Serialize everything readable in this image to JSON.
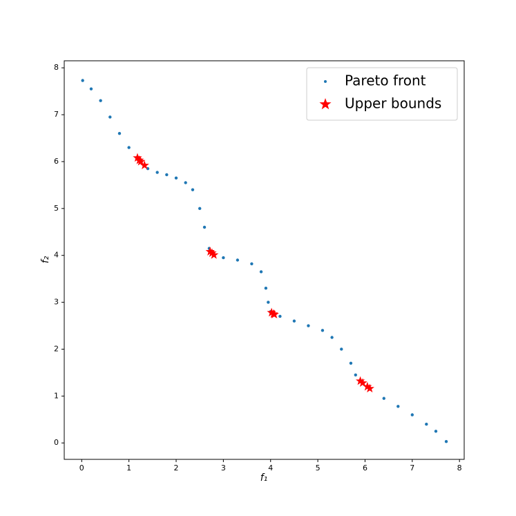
{
  "chart_data": {
    "type": "scatter",
    "xlabel": "f₁",
    "ylabel": "f₂",
    "xlim": [
      -0.37,
      8.1
    ],
    "ylim": [
      -0.35,
      8.15
    ],
    "xticks": [
      0,
      1,
      2,
      3,
      4,
      5,
      6,
      7,
      8
    ],
    "yticks": [
      0,
      1,
      2,
      3,
      4,
      5,
      6,
      7,
      8
    ],
    "legend": "upper right",
    "series": [
      {
        "name": "Pareto front",
        "color": "#1f77b4",
        "marker": "point",
        "x": [
          0.02,
          0.2,
          0.4,
          0.6,
          0.8,
          1.0,
          1.2,
          1.4,
          1.6,
          1.8,
          2.0,
          2.2,
          2.35,
          2.5,
          2.6,
          2.7,
          2.8,
          3.0,
          3.3,
          3.6,
          3.8,
          3.9,
          3.95,
          4.0,
          4.2,
          4.5,
          4.8,
          5.1,
          5.3,
          5.5,
          5.7,
          5.8,
          5.9,
          6.1,
          6.4,
          6.7,
          7.0,
          7.3,
          7.5,
          7.72
        ],
        "values": [
          7.73,
          7.55,
          7.3,
          6.95,
          6.6,
          6.3,
          6.05,
          5.85,
          5.77,
          5.72,
          5.65,
          5.55,
          5.4,
          5.0,
          4.6,
          4.15,
          4.0,
          3.95,
          3.9,
          3.82,
          3.65,
          3.3,
          3.0,
          2.8,
          2.7,
          2.6,
          2.5,
          2.4,
          2.25,
          2.0,
          1.7,
          1.45,
          1.32,
          1.15,
          0.95,
          0.78,
          0.6,
          0.4,
          0.25,
          0.03
        ]
      },
      {
        "name": "Upper bounds",
        "color": "#ff0000",
        "marker": "star",
        "x": [
          1.18,
          1.22,
          1.25,
          1.33,
          2.72,
          2.76,
          2.8,
          4.02,
          4.06,
          4.08,
          5.9,
          5.95,
          6.05,
          6.1
        ],
        "values": [
          6.08,
          6.03,
          6.0,
          5.92,
          4.08,
          4.05,
          4.01,
          2.78,
          2.75,
          2.74,
          1.32,
          1.28,
          1.2,
          1.16
        ]
      }
    ]
  }
}
